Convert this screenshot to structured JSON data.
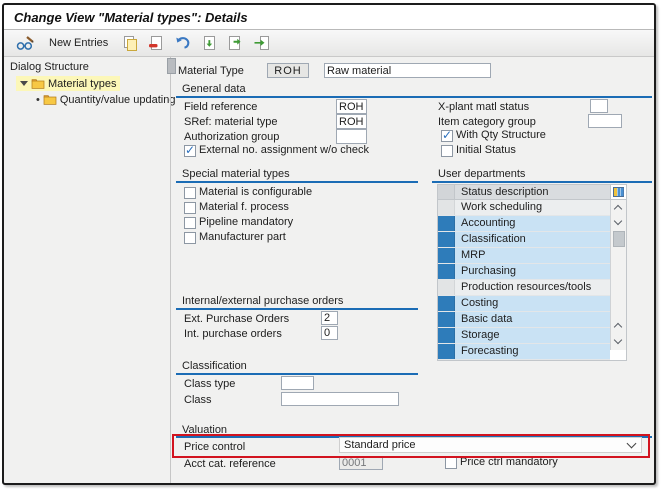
{
  "window": {
    "title": "Change View \"Material types\": Details"
  },
  "toolbar": {
    "display_change_icon": "glasses-pencil",
    "new_entries_label": "New Entries",
    "icon_names": [
      "copy-icon",
      "delete-entry-icon",
      "undo-icon",
      "select-all-icon",
      "select-block-icon",
      "deselect-all-icon"
    ]
  },
  "sidebar": {
    "title": "Dialog Structure",
    "items": [
      {
        "label": "Material types",
        "selected": true
      },
      {
        "label": "Quantity/value updating",
        "selected": false
      }
    ]
  },
  "material_type": {
    "label": "Material Type",
    "code": "ROH",
    "description": "Raw material"
  },
  "sections": {
    "general": {
      "title": "General data",
      "left_fields": [
        {
          "label": "Field reference",
          "value": "ROH"
        },
        {
          "label": "SRef: material type",
          "value": "ROH"
        },
        {
          "label": "Authorization group",
          "value": ""
        }
      ],
      "left_checkbox": {
        "label": "External no. assignment w/o check",
        "checked": true
      },
      "right_fields": [
        {
          "label": "X-plant matl status",
          "value": ""
        },
        {
          "label": "Item category group",
          "value": ""
        }
      ],
      "right_checkboxes": [
        {
          "label": "With Qty Structure",
          "checked": true
        },
        {
          "label": "Initial Status",
          "checked": false
        }
      ]
    },
    "special": {
      "title": "Special material types",
      "checkboxes": [
        {
          "label": "Material is configurable",
          "checked": false
        },
        {
          "label": "Material f. process",
          "checked": false
        },
        {
          "label": "Pipeline mandatory",
          "checked": false
        },
        {
          "label": "Manufacturer part",
          "checked": false
        }
      ]
    },
    "user_departments": {
      "title": "User departments",
      "column_header": "Status description",
      "rows": [
        {
          "label": "Work scheduling",
          "active": false
        },
        {
          "label": "Accounting",
          "active": true
        },
        {
          "label": "Classification",
          "active": true
        },
        {
          "label": "MRP",
          "active": true
        },
        {
          "label": "Purchasing",
          "active": true
        },
        {
          "label": "Production resources/tools",
          "active": false
        },
        {
          "label": "Costing",
          "active": true
        },
        {
          "label": "Basic data",
          "active": true
        },
        {
          "label": "Storage",
          "active": true
        },
        {
          "label": "Forecasting",
          "active": true
        }
      ]
    },
    "purchase_orders": {
      "title": "Internal/external purchase orders",
      "fields": [
        {
          "label": "Ext. Purchase Orders",
          "value": "2"
        },
        {
          "label": "Int. purchase orders",
          "value": "0"
        }
      ]
    },
    "classification": {
      "title": "Classification",
      "fields": [
        {
          "label": "Class type",
          "value": ""
        },
        {
          "label": "Class",
          "value": ""
        }
      ]
    },
    "valuation": {
      "title": "Valuation",
      "price_control": {
        "label": "Price control",
        "value": "Standard price"
      },
      "acct_cat": {
        "label": "Acct cat. reference",
        "value": "0001"
      },
      "mandatory_checkbox": {
        "label": "Price ctrl mandatory",
        "checked": false
      }
    }
  },
  "colors": {
    "accent_blue": "#1b6cb5",
    "status_blue": "#2e7cba",
    "row_blue": "#c9e2f4",
    "highlight_yellow": "#fcf7b8",
    "annotation_red": "#d2131f"
  }
}
